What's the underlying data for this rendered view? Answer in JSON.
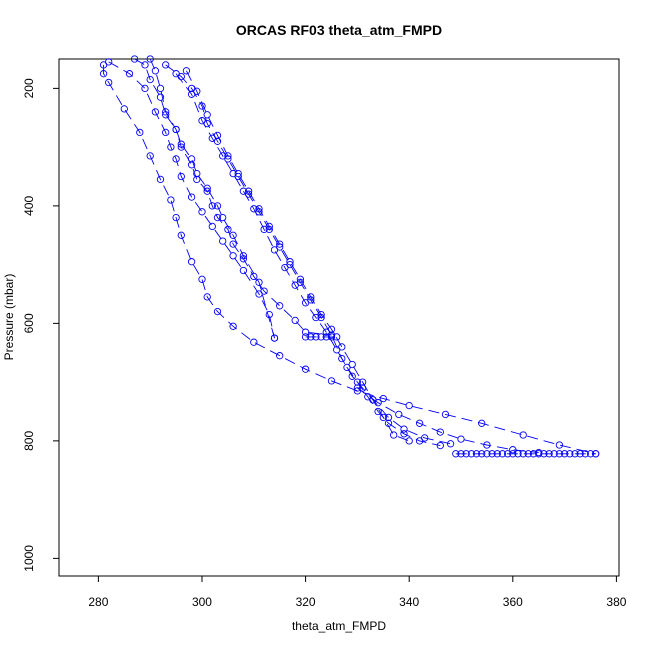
{
  "chart_data": {
    "type": "line",
    "title": "ORCAS RF03 theta_atm_FMPD",
    "xlabel": "theta_atm_FMPD",
    "ylabel": "Pressure (mbar)",
    "xlim": [
      272.4,
      380.5
    ],
    "ylim": [
      1030,
      150
    ],
    "y_reversed": true,
    "x_ticks": [
      280,
      300,
      320,
      340,
      360,
      380
    ],
    "y_ticks": [
      200,
      400,
      600,
      800,
      1000
    ],
    "grid": false,
    "marker": "open-circle",
    "line_style": "long-dash",
    "color": "#0000ff",
    "series": [
      {
        "points": [
          [
            281,
            160
          ],
          [
            281,
            175
          ],
          [
            282,
            190
          ],
          [
            285,
            235
          ],
          [
            288,
            275
          ],
          [
            290,
            315
          ],
          [
            292,
            355
          ],
          [
            294,
            390
          ],
          [
            295,
            420
          ],
          [
            296,
            450
          ],
          [
            298,
            495
          ],
          [
            300,
            525
          ],
          [
            301,
            555
          ],
          [
            303,
            580
          ],
          [
            306,
            605
          ],
          [
            310,
            632
          ],
          [
            315,
            655
          ],
          [
            320,
            678
          ],
          [
            325,
            698
          ],
          [
            330,
            715
          ],
          [
            335,
            728
          ],
          [
            340,
            740
          ],
          [
            347,
            755
          ],
          [
            354,
            770
          ],
          [
            362,
            790
          ],
          [
            369,
            807
          ],
          [
            376,
            822
          ]
        ]
      },
      {
        "points": [
          [
            282,
            155
          ],
          [
            286,
            175
          ],
          [
            289,
            200
          ],
          [
            291,
            240
          ],
          [
            293,
            275
          ],
          [
            294,
            300
          ],
          [
            295,
            320
          ],
          [
            296,
            350
          ],
          [
            298,
            385
          ],
          [
            300,
            410
          ],
          [
            302,
            435
          ],
          [
            304,
            460
          ],
          [
            306,
            485
          ],
          [
            308,
            510
          ],
          [
            311,
            550
          ],
          [
            313,
            585
          ],
          [
            314,
            625
          ]
        ]
      },
      {
        "points": [
          [
            287,
            150
          ],
          [
            289,
            160
          ],
          [
            290,
            185
          ],
          [
            292,
            215
          ],
          [
            293,
            245
          ],
          [
            295,
            270
          ],
          [
            296,
            295
          ],
          [
            298,
            320
          ],
          [
            299,
            345
          ],
          [
            301,
            370
          ],
          [
            303,
            400
          ],
          [
            304,
            420
          ],
          [
            306,
            450
          ],
          [
            308,
            485
          ],
          [
            311,
            530
          ],
          [
            314,
            625
          ]
        ]
      },
      {
        "points": [
          [
            290,
            150
          ],
          [
            291,
            170
          ],
          [
            292,
            200
          ],
          [
            293,
            240
          ],
          [
            295,
            270
          ],
          [
            296,
            300
          ],
          [
            298,
            330
          ],
          [
            299,
            355
          ],
          [
            301,
            375
          ],
          [
            302,
            400
          ],
          [
            303,
            420
          ],
          [
            305,
            440
          ],
          [
            306,
            465
          ],
          [
            308,
            490
          ],
          [
            310,
            520
          ],
          [
            312,
            545
          ],
          [
            315,
            570
          ],
          [
            318,
            595
          ],
          [
            320,
            615
          ],
          [
            325,
            620
          ]
        ]
      },
      {
        "points": [
          [
            293,
            160
          ],
          [
            296,
            180
          ],
          [
            298,
            200
          ],
          [
            300,
            230
          ],
          [
            301,
            260
          ],
          [
            303,
            290
          ],
          [
            305,
            320
          ],
          [
            307,
            350
          ],
          [
            309,
            380
          ],
          [
            311,
            410
          ],
          [
            313,
            440
          ],
          [
            315,
            470
          ],
          [
            317,
            500
          ],
          [
            319,
            530
          ],
          [
            321,
            560
          ],
          [
            323,
            590
          ],
          [
            325,
            620
          ],
          [
            327,
            660
          ],
          [
            329,
            690
          ],
          [
            331,
            710
          ],
          [
            333,
            730
          ],
          [
            335,
            760
          ],
          [
            337,
            790
          ],
          [
            340,
            800
          ]
        ]
      },
      {
        "points": [
          [
            297,
            170
          ],
          [
            299,
            205
          ],
          [
            301,
            245
          ],
          [
            303,
            280
          ],
          [
            305,
            315
          ],
          [
            307,
            345
          ],
          [
            309,
            375
          ],
          [
            311,
            405
          ],
          [
            313,
            435
          ],
          [
            315,
            465
          ],
          [
            317,
            495
          ],
          [
            319,
            525
          ],
          [
            321,
            555
          ],
          [
            323,
            585
          ],
          [
            325,
            610
          ],
          [
            327,
            640
          ],
          [
            329,
            670
          ],
          [
            331,
            700
          ],
          [
            333,
            730
          ],
          [
            336,
            760
          ],
          [
            339,
            780
          ],
          [
            343,
            795
          ],
          [
            348,
            805
          ]
        ]
      },
      {
        "points": [
          [
            295,
            175
          ],
          [
            298,
            210
          ],
          [
            300,
            255
          ],
          [
            302,
            285
          ],
          [
            304,
            315
          ],
          [
            306,
            345
          ],
          [
            308,
            375
          ],
          [
            310,
            405
          ],
          [
            312,
            440
          ],
          [
            314,
            475
          ],
          [
            316,
            505
          ],
          [
            318,
            535
          ],
          [
            320,
            565
          ],
          [
            322,
            590
          ],
          [
            324,
            615
          ],
          [
            326,
            645
          ],
          [
            328,
            675
          ],
          [
            330,
            700
          ],
          [
            332,
            725
          ],
          [
            334,
            750
          ],
          [
            336,
            770
          ],
          [
            339,
            788
          ],
          [
            342,
            800
          ],
          [
            346,
            808
          ]
        ]
      },
      {
        "points": [
          [
            330,
            710
          ],
          [
            334,
            735
          ],
          [
            338,
            755
          ],
          [
            342,
            770
          ],
          [
            346,
            785
          ],
          [
            350,
            797
          ],
          [
            355,
            807
          ],
          [
            360,
            815
          ],
          [
            365,
            820
          ]
        ]
      },
      {
        "points": [
          [
            349,
            822
          ],
          [
            350,
            822
          ],
          [
            351,
            822
          ],
          [
            352,
            822
          ],
          [
            353,
            822
          ],
          [
            354,
            822
          ],
          [
            355,
            822
          ],
          [
            356,
            822
          ],
          [
            357,
            822
          ],
          [
            358,
            822
          ],
          [
            359,
            822
          ],
          [
            360,
            822
          ],
          [
            361,
            822
          ],
          [
            362,
            822
          ],
          [
            363,
            822
          ],
          [
            364,
            822
          ],
          [
            365,
            822
          ],
          [
            366,
            822
          ],
          [
            367,
            822
          ],
          [
            368,
            822
          ],
          [
            369,
            822
          ],
          [
            370,
            822
          ],
          [
            371,
            822
          ],
          [
            372,
            822
          ],
          [
            373,
            822
          ],
          [
            374,
            822
          ],
          [
            375,
            822
          ],
          [
            376,
            822
          ]
        ]
      },
      {
        "points": [
          [
            320,
            623
          ],
          [
            321,
            623
          ],
          [
            322,
            623
          ],
          [
            323,
            623
          ],
          [
            324,
            623
          ],
          [
            325,
            623
          ],
          [
            326,
            623
          ]
        ]
      }
    ]
  }
}
